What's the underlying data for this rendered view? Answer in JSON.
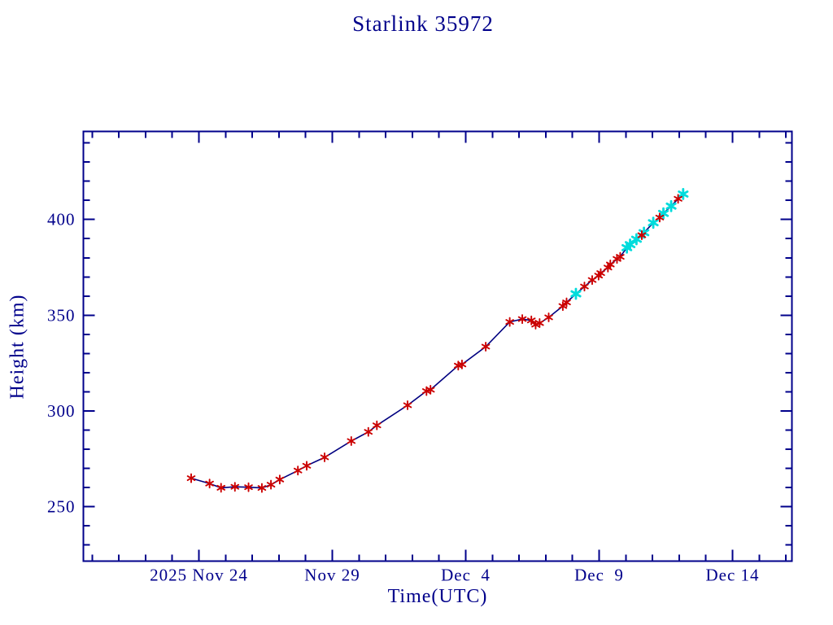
{
  "page": {
    "background": "#ffffff"
  },
  "chart_data": {
    "type": "line",
    "title": "Starlink 35972",
    "xlabel": "Time(UTC)",
    "ylabel": "Height (km)",
    "grid": false,
    "legend": "none",
    "x_axis": {
      "time_unit": "days since 2025 Nov 24 00:00 UTC",
      "range": [
        -4.33,
        22.22
      ],
      "minor_tick_step_days": 1,
      "major_ticks": [
        {
          "t": 0,
          "label": "2025 Nov 24"
        },
        {
          "t": 5,
          "label": "Nov 29"
        },
        {
          "t": 10,
          "label": "Dec  4"
        },
        {
          "t": 15,
          "label": "Dec  9"
        },
        {
          "t": 20,
          "label": "Dec 14"
        }
      ]
    },
    "y_axis": {
      "unit": "km",
      "range": [
        221.6,
        445.9
      ],
      "minor_tick_step": 10,
      "major_ticks": [
        250,
        300,
        350,
        400
      ]
    },
    "colors": {
      "frame": "#00008b",
      "text": "#00008b",
      "line": "#000080",
      "observed": "#cc0000",
      "predicted": "#00dcdc"
    },
    "series": [
      {
        "name": "observed",
        "marker": "asterisk",
        "color_key": "observed",
        "points": [
          [
            -0.29,
            264.9
          ],
          [
            0.4,
            262.1
          ],
          [
            0.83,
            259.9
          ],
          [
            1.35,
            260.4
          ],
          [
            1.86,
            260.2
          ],
          [
            2.36,
            259.8
          ],
          [
            2.7,
            261.5
          ],
          [
            3.03,
            264.2
          ],
          [
            3.71,
            268.9
          ],
          [
            4.04,
            271.4
          ],
          [
            4.71,
            275.8
          ],
          [
            5.71,
            284.3
          ],
          [
            6.35,
            289.1
          ],
          [
            6.67,
            292.5
          ],
          [
            7.82,
            303.0
          ],
          [
            8.53,
            310.4
          ],
          [
            8.68,
            311.1
          ],
          [
            9.72,
            323.7
          ],
          [
            9.86,
            324.3
          ],
          [
            10.75,
            333.6
          ],
          [
            11.65,
            346.5
          ],
          [
            12.12,
            348.0
          ],
          [
            12.46,
            347.3
          ],
          [
            12.62,
            345.1
          ],
          [
            12.77,
            345.9
          ],
          [
            13.11,
            348.9
          ],
          [
            13.64,
            354.8
          ],
          [
            13.78,
            356.7
          ],
          [
            14.45,
            365.0
          ],
          [
            14.74,
            368.4
          ],
          [
            14.98,
            370.7
          ],
          [
            15.06,
            372.0
          ],
          [
            15.33,
            374.9
          ],
          [
            15.42,
            376.5
          ],
          [
            15.67,
            379.4
          ],
          [
            15.79,
            380.5
          ],
          [
            16.6,
            391.8
          ],
          [
            17.27,
            401.0
          ],
          [
            17.96,
            410.8
          ]
        ]
      },
      {
        "name": "predicted",
        "marker": "asterisk",
        "color_key": "predicted",
        "points": [
          [
            14.13,
            361.2
          ],
          [
            16.04,
            385.3
          ],
          [
            16.16,
            386.9
          ],
          [
            16.4,
            389.7
          ],
          [
            16.68,
            393.1
          ],
          [
            17.03,
            398.3
          ],
          [
            17.41,
            403.2
          ],
          [
            17.7,
            407.0
          ],
          [
            18.15,
            413.3
          ]
        ]
      }
    ]
  }
}
